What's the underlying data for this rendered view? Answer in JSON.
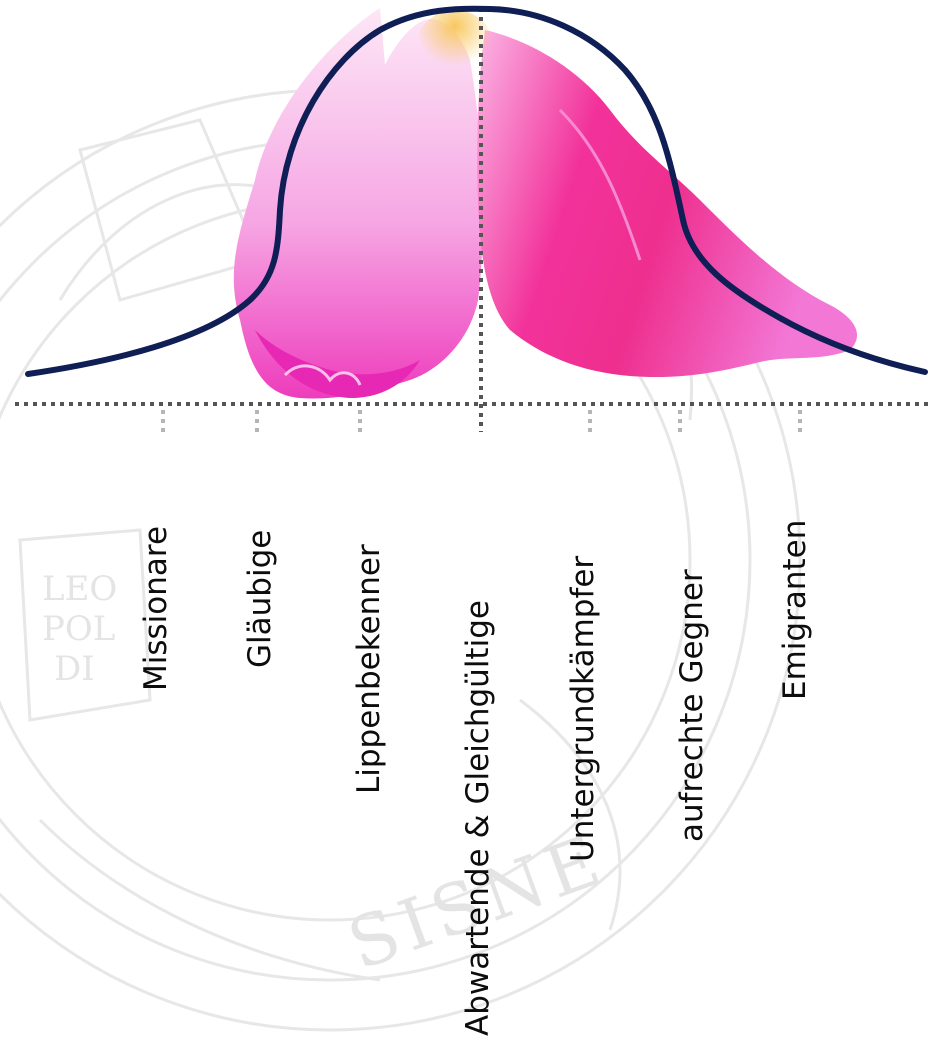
{
  "labels": [
    "Missionare",
    "Gläubige",
    "Lippenbekenner",
    "Abwartende & Gleichgültige",
    "Untergrundkämpfer",
    "aufrechte Gegner",
    "Emigranten"
  ],
  "colors": {
    "curve": "#0f1e55",
    "axis": "#555555",
    "tick": "#b5b5b5",
    "watermark": "#e7e7e7",
    "petal_light": "#f6c4ee",
    "petal_mid": "#f050c8",
    "petal_deep": "#e81a86",
    "petal_center": "#f8c860"
  },
  "watermark": {
    "seal_text_1": "LEO",
    "seal_text_2": "POL",
    "seal_text_3": "DI",
    "rim_text": "SISNE"
  }
}
